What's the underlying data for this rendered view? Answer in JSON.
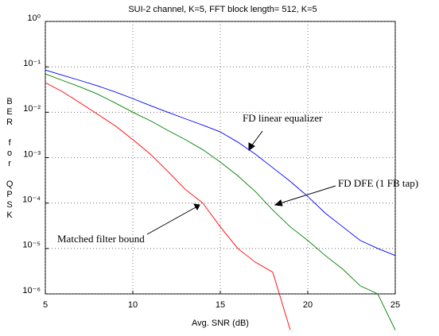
{
  "chart_data": {
    "type": "line",
    "title": "SUI-2 channel, K=5, FFT block length= 512, K=5",
    "xlabel": "Avg. SNR (dB)",
    "ylabel": "BER for QPSK",
    "log_y": true,
    "grid": true,
    "x": [
      5,
      6,
      7,
      8,
      9,
      10,
      11,
      12,
      13,
      14,
      15,
      16,
      17,
      18,
      19,
      20,
      21,
      22,
      23,
      24,
      25
    ],
    "xlim": [
      5,
      25
    ],
    "xticks": [
      5,
      10,
      15,
      20,
      25
    ],
    "ylim": [
      1e-06,
      1
    ],
    "yticks": [
      {
        "value": 1e-06,
        "label": "10⁻⁶"
      },
      {
        "value": 1e-05,
        "label": "10⁻⁵"
      },
      {
        "value": 0.0001,
        "label": "10⁻⁴"
      },
      {
        "value": 0.001,
        "label": "10⁻³"
      },
      {
        "value": 0.01,
        "label": "10⁻²"
      },
      {
        "value": 0.1,
        "label": "10⁻¹"
      },
      {
        "value": 1,
        "label": "10⁰"
      }
    ],
    "series": [
      {
        "name": "FD linear equalizer",
        "color": "#0000ff",
        "values": [
          0.085,
          0.065,
          0.05,
          0.038,
          0.028,
          0.02,
          0.014,
          0.01,
          0.0072,
          0.0052,
          0.0037,
          0.0022,
          0.0012,
          0.0006,
          0.0003,
          0.00014,
          6e-05,
          3e-05,
          1.5e-05,
          1e-05,
          7e-06
        ]
      },
      {
        "name": "FD DFE (1 FB tap)",
        "color": "#008000",
        "values": [
          0.07,
          0.05,
          0.036,
          0.025,
          0.016,
          0.01,
          0.0065,
          0.004,
          0.0025,
          0.0015,
          0.0008,
          0.0004,
          0.00018,
          7e-05,
          3e-05,
          1.5e-05,
          7e-06,
          3.5e-06,
          1.5e-06,
          1e-06,
          1.6e-07
        ]
      },
      {
        "name": "Matched filter bound",
        "color": "#ff0000",
        "values": [
          0.045,
          0.028,
          0.016,
          0.009,
          0.005,
          0.0025,
          0.0012,
          0.0005,
          0.0002,
          0.0001,
          3e-05,
          1e-05,
          5e-06,
          3e-06,
          1.6e-07,
          null,
          null,
          null,
          null,
          null,
          null
        ]
      }
    ]
  }
}
